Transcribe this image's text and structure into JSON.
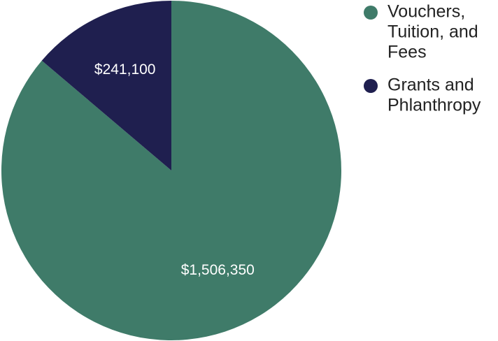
{
  "chart_data": {
    "type": "pie",
    "legend_position": "right",
    "slices": [
      {
        "label": "Vouchers, Tuition, and Fees",
        "legend_lines": [
          "Vouchers,",
          "Tuition, and",
          "Fees"
        ],
        "value": 1506350,
        "display_value": "$1,506,350",
        "color": "#3f7b69"
      },
      {
        "label": "Grants and Phlanthropy",
        "legend_lines": [
          "Grants and",
          "Phlanthropy"
        ],
        "value": 241100,
        "display_value": "$241,100",
        "color": "#1f1f4f"
      }
    ]
  }
}
